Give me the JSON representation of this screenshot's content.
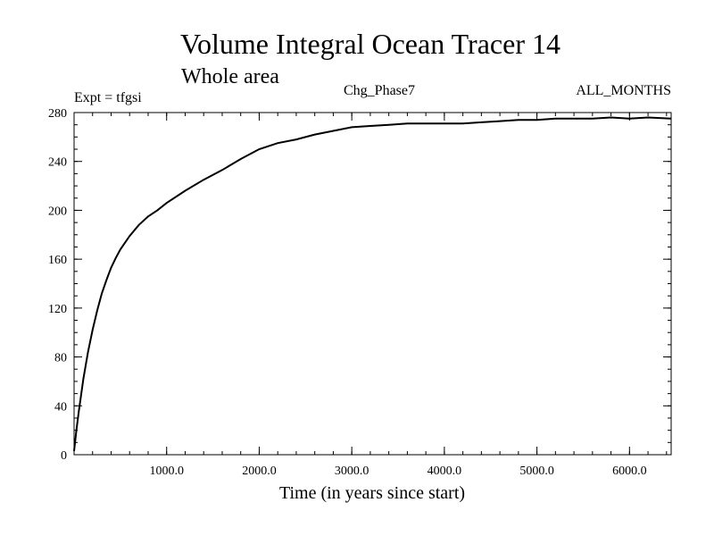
{
  "chart_data": {
    "type": "line",
    "title": "Volume Integral Ocean Tracer 14",
    "subtitle": "Whole area",
    "experiment_label": "Expt = tfgsi",
    "center_label": "Chg_Phase7",
    "right_label": "ALL_MONTHS",
    "xlabel": "Time (in years since start)",
    "ylabel": "",
    "xlim": [
      0,
      6450
    ],
    "ylim": [
      0,
      280
    ],
    "x_ticks": [
      1000,
      2000,
      3000,
      4000,
      5000,
      6000
    ],
    "x_tick_labels": [
      "1000.0",
      "2000.0",
      "3000.0",
      "4000.0",
      "5000.0",
      "6000.0"
    ],
    "y_ticks": [
      0,
      40,
      80,
      120,
      160,
      200,
      240,
      280
    ],
    "y_tick_labels": [
      "0",
      "40",
      "80",
      "120",
      "160",
      "200",
      "240",
      "280"
    ],
    "grid": false,
    "series": [
      {
        "name": "Tracer 14",
        "x": [
          0,
          25,
          50,
          100,
          150,
          200,
          250,
          300,
          350,
          400,
          450,
          500,
          600,
          700,
          800,
          900,
          1000,
          1200,
          1400,
          1600,
          1800,
          2000,
          2200,
          2400,
          2600,
          2800,
          3000,
          3200,
          3400,
          3600,
          3800,
          4000,
          4200,
          4400,
          4600,
          4800,
          5000,
          5200,
          5400,
          5600,
          5800,
          6000,
          6200,
          6450
        ],
        "y": [
          3,
          20,
          35,
          62,
          84,
          102,
          118,
          132,
          143,
          153,
          161,
          168,
          179,
          188,
          195,
          200,
          206,
          216,
          225,
          233,
          242,
          250,
          255,
          258,
          262,
          265,
          268,
          269,
          270,
          271,
          271,
          271,
          271,
          272,
          273,
          274,
          274,
          275,
          275,
          275,
          276,
          275,
          276,
          275
        ]
      }
    ]
  }
}
